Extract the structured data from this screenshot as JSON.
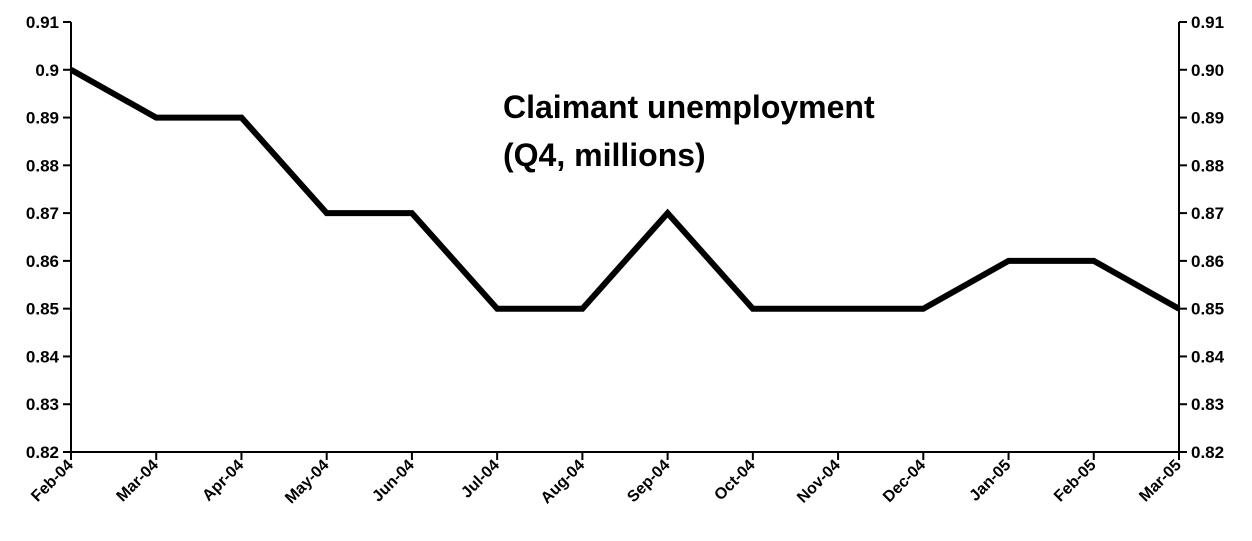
{
  "chart_data": {
    "type": "line",
    "title": "Claimant unemployment",
    "subtitle": "(Q4, millions)",
    "categories": [
      "Feb-04",
      "Mar-04",
      "Apr-04",
      "May-04",
      "Jun-04",
      "Jul-04",
      "Aug-04",
      "Sep-04",
      "Oct-04",
      "Nov-04",
      "Dec-04",
      "Jan-05",
      "Feb-05",
      "Mar-05"
    ],
    "series": [
      {
        "values": [
          0.9,
          0.89,
          0.89,
          0.87,
          0.87,
          0.85,
          0.85,
          0.87,
          0.85,
          0.85,
          0.85,
          0.86,
          0.86,
          0.85
        ],
        "color": "#000000"
      }
    ],
    "ylim": [
      0.82,
      0.91
    ],
    "left_ticks": [
      "0.82",
      "0.83",
      "0.84",
      "0.85",
      "0.86",
      "0.87",
      "0.88",
      "0.89",
      "0.9",
      "0.91"
    ],
    "right_ticks": [
      "0.82",
      "0.83",
      "0.84",
      "0.85",
      "0.86",
      "0.87",
      "0.88",
      "0.89",
      "0.90",
      "0.91"
    ],
    "tick_values": [
      0.82,
      0.83,
      0.84,
      0.85,
      0.86,
      0.87,
      0.88,
      0.89,
      0.9,
      0.91
    ],
    "grid": false,
    "legend": "none"
  }
}
